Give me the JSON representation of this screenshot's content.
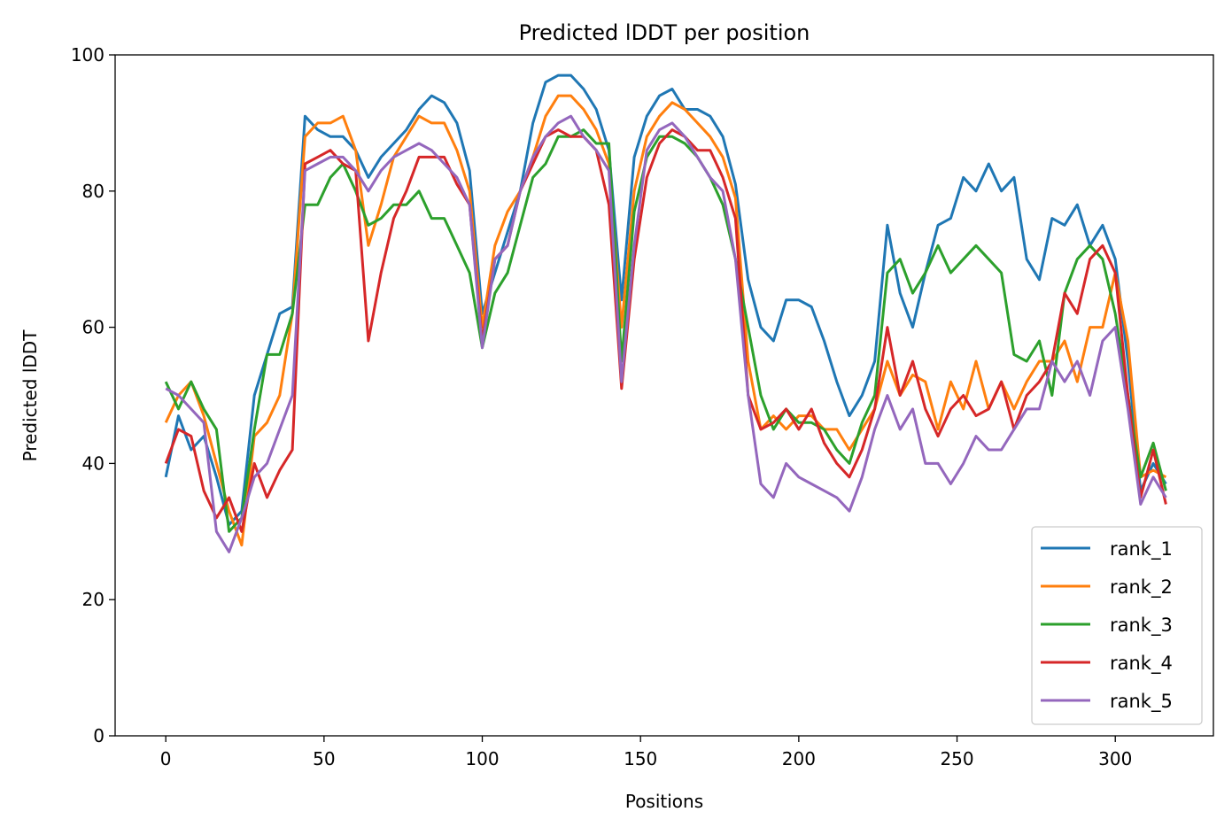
{
  "chart_data": {
    "type": "line",
    "title": "Predicted lDDT per position",
    "xlabel": "Positions",
    "ylabel": "Predicted lDDT",
    "xlim": [
      -16,
      331
    ],
    "ylim": [
      0,
      100
    ],
    "xticks": [
      0,
      50,
      100,
      150,
      200,
      250,
      300
    ],
    "yticks": [
      0,
      20,
      40,
      60,
      80,
      100
    ],
    "grid": false,
    "legend_position": "lower-right",
    "x": [
      0,
      4,
      8,
      12,
      16,
      20,
      24,
      28,
      32,
      36,
      40,
      44,
      48,
      52,
      56,
      60,
      64,
      68,
      72,
      76,
      80,
      84,
      88,
      92,
      96,
      100,
      104,
      108,
      112,
      116,
      120,
      124,
      128,
      132,
      136,
      140,
      144,
      148,
      152,
      156,
      160,
      164,
      168,
      172,
      176,
      180,
      184,
      188,
      192,
      196,
      200,
      204,
      208,
      212,
      216,
      220,
      224,
      228,
      232,
      236,
      240,
      244,
      248,
      252,
      256,
      260,
      264,
      268,
      272,
      276,
      280,
      284,
      288,
      292,
      296,
      300,
      304,
      308,
      312,
      316
    ],
    "series": [
      {
        "name": "rank_1",
        "color": "#1f77b4",
        "values": [
          38,
          47,
          42,
          44,
          38,
          31,
          33,
          50,
          56,
          62,
          63,
          91,
          89,
          88,
          88,
          86,
          82,
          85,
          87,
          89,
          92,
          94,
          93,
          90,
          83,
          62,
          68,
          74,
          80,
          90,
          96,
          97,
          97,
          95,
          92,
          86,
          64,
          85,
          91,
          94,
          95,
          92,
          92,
          91,
          88,
          81,
          67,
          60,
          58,
          64,
          64,
          63,
          58,
          52,
          47,
          50,
          55,
          75,
          65,
          60,
          68,
          75,
          76,
          82,
          80,
          84,
          80,
          82,
          70,
          67,
          76,
          75,
          78,
          72,
          75,
          70,
          55,
          36,
          40,
          37
        ]
      },
      {
        "name": "rank_2",
        "color": "#ff7f0e",
        "values": [
          46,
          50,
          52,
          47,
          40,
          33,
          28,
          44,
          46,
          50,
          62,
          88,
          90,
          90,
          91,
          86,
          72,
          78,
          85,
          88,
          91,
          90,
          90,
          86,
          80,
          60,
          72,
          77,
          80,
          85,
          91,
          94,
          94,
          92,
          89,
          84,
          60,
          80,
          88,
          91,
          93,
          92,
          90,
          88,
          85,
          79,
          55,
          45,
          47,
          45,
          47,
          47,
          45,
          45,
          42,
          45,
          48,
          55,
          50,
          53,
          52,
          45,
          52,
          48,
          55,
          48,
          52,
          48,
          52,
          55,
          55,
          58,
          52,
          60,
          60,
          68,
          58,
          38,
          39,
          38
        ]
      },
      {
        "name": "rank_3",
        "color": "#2ca02c",
        "values": [
          52,
          48,
          52,
          48,
          45,
          30,
          32,
          45,
          56,
          56,
          62,
          78,
          78,
          82,
          84,
          80,
          75,
          76,
          78,
          78,
          80,
          76,
          76,
          72,
          68,
          57,
          65,
          68,
          75,
          82,
          84,
          88,
          88,
          89,
          87,
          87,
          55,
          77,
          85,
          88,
          88,
          87,
          85,
          82,
          78,
          70,
          60,
          50,
          45,
          48,
          46,
          46,
          45,
          42,
          40,
          46,
          50,
          68,
          70,
          65,
          68,
          72,
          68,
          70,
          72,
          70,
          68,
          56,
          55,
          58,
          50,
          65,
          70,
          72,
          70,
          62,
          50,
          38,
          43,
          36
        ]
      },
      {
        "name": "rank_4",
        "color": "#d62728",
        "values": [
          40,
          45,
          44,
          36,
          32,
          35,
          30,
          40,
          35,
          39,
          42,
          84,
          85,
          86,
          84,
          83,
          58,
          68,
          76,
          80,
          85,
          85,
          85,
          81,
          78,
          58,
          70,
          72,
          80,
          84,
          88,
          89,
          88,
          88,
          86,
          78,
          51,
          70,
          82,
          87,
          89,
          88,
          86,
          86,
          82,
          76,
          50,
          45,
          46,
          48,
          45,
          48,
          43,
          40,
          38,
          42,
          48,
          60,
          50,
          55,
          48,
          44,
          48,
          50,
          47,
          48,
          52,
          45,
          50,
          52,
          55,
          65,
          62,
          70,
          72,
          68,
          50,
          35,
          42,
          34
        ]
      },
      {
        "name": "rank_5",
        "color": "#9467bd",
        "values": [
          51,
          50,
          48,
          46,
          30,
          27,
          32,
          38,
          40,
          45,
          50,
          83,
          84,
          85,
          85,
          83,
          80,
          83,
          85,
          86,
          87,
          86,
          84,
          82,
          78,
          57,
          70,
          72,
          80,
          85,
          88,
          90,
          91,
          88,
          86,
          83,
          52,
          72,
          86,
          89,
          90,
          88,
          85,
          82,
          80,
          70,
          50,
          37,
          35,
          40,
          38,
          37,
          36,
          35,
          33,
          38,
          45,
          50,
          45,
          48,
          40,
          40,
          37,
          40,
          44,
          42,
          42,
          45,
          48,
          48,
          55,
          52,
          55,
          50,
          58,
          60,
          48,
          34,
          38,
          35
        ]
      }
    ]
  }
}
